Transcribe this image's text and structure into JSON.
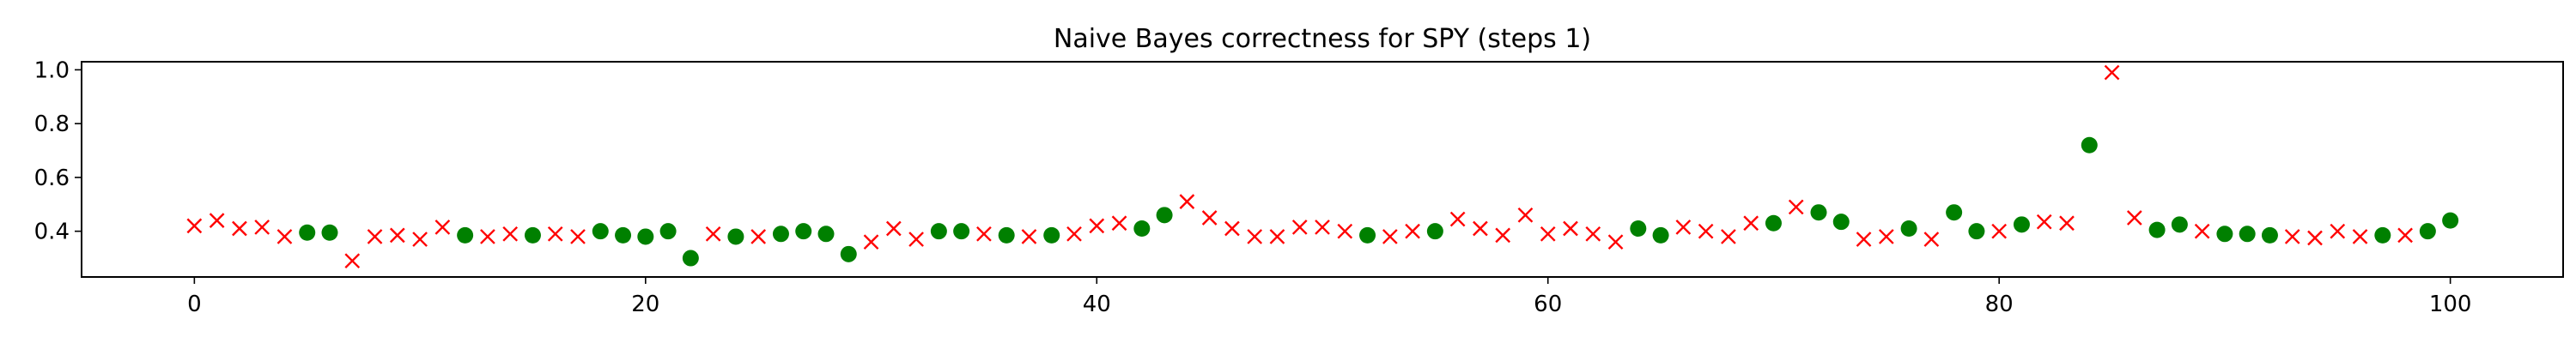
{
  "chart_data": {
    "type": "scatter",
    "title": "Naive Bayes correctness for SPY (steps 1)",
    "xlabel": "",
    "ylabel": "",
    "xlim": [
      -5,
      105
    ],
    "ylim": [
      0.23,
      1.03
    ],
    "grid": false,
    "xticks": [
      0,
      20,
      40,
      60,
      80,
      100
    ],
    "yticks": [
      0.4,
      0.6,
      0.8,
      1.0
    ],
    "xtick_labels": [
      "0",
      "20",
      "40",
      "60",
      "80",
      "100"
    ],
    "ytick_labels": [
      "0.4",
      "0.6",
      "0.8",
      "1.0"
    ],
    "series": [
      {
        "marker": "x",
        "color": "#ff0000",
        "points": [
          [
            0,
            0.42
          ],
          [
            1,
            0.44
          ],
          [
            2,
            0.41
          ],
          [
            3,
            0.415
          ],
          [
            4,
            0.38
          ],
          [
            7,
            0.29
          ],
          [
            8,
            0.38
          ],
          [
            9,
            0.385
          ],
          [
            10,
            0.37
          ],
          [
            11,
            0.415
          ],
          [
            13,
            0.38
          ],
          [
            14,
            0.39
          ],
          [
            16,
            0.39
          ],
          [
            17,
            0.38
          ],
          [
            23,
            0.39
          ],
          [
            25,
            0.38
          ],
          [
            30,
            0.36
          ],
          [
            31,
            0.41
          ],
          [
            32,
            0.37
          ],
          [
            35,
            0.39
          ],
          [
            37,
            0.38
          ],
          [
            39,
            0.39
          ],
          [
            40,
            0.42
          ],
          [
            41,
            0.43
          ],
          [
            44,
            0.51
          ],
          [
            45,
            0.45
          ],
          [
            46,
            0.41
          ],
          [
            47,
            0.38
          ],
          [
            48,
            0.38
          ],
          [
            49,
            0.415
          ],
          [
            50,
            0.415
          ],
          [
            51,
            0.4
          ],
          [
            53,
            0.38
          ],
          [
            54,
            0.4
          ],
          [
            56,
            0.445
          ],
          [
            57,
            0.41
          ],
          [
            58,
            0.385
          ],
          [
            59,
            0.46
          ],
          [
            60,
            0.39
          ],
          [
            61,
            0.41
          ],
          [
            62,
            0.39
          ],
          [
            63,
            0.36
          ],
          [
            66,
            0.415
          ],
          [
            67,
            0.4
          ],
          [
            68,
            0.38
          ],
          [
            69,
            0.43
          ],
          [
            71,
            0.49
          ],
          [
            74,
            0.37
          ],
          [
            75,
            0.38
          ],
          [
            77,
            0.37
          ],
          [
            80,
            0.4
          ],
          [
            82,
            0.435
          ],
          [
            83,
            0.43
          ],
          [
            85,
            0.99
          ],
          [
            86,
            0.45
          ],
          [
            89,
            0.4
          ],
          [
            93,
            0.38
          ],
          [
            94,
            0.375
          ],
          [
            95,
            0.4
          ],
          [
            96,
            0.38
          ],
          [
            98,
            0.385
          ]
        ]
      },
      {
        "marker": "o",
        "color": "#008000",
        "points": [
          [
            5,
            0.395
          ],
          [
            6,
            0.395
          ],
          [
            12,
            0.385
          ],
          [
            15,
            0.385
          ],
          [
            18,
            0.4
          ],
          [
            19,
            0.385
          ],
          [
            20,
            0.38
          ],
          [
            21,
            0.4
          ],
          [
            22,
            0.3
          ],
          [
            24,
            0.38
          ],
          [
            26,
            0.39
          ],
          [
            27,
            0.4
          ],
          [
            28,
            0.39
          ],
          [
            29,
            0.315
          ],
          [
            33,
            0.4
          ],
          [
            34,
            0.4
          ],
          [
            36,
            0.385
          ],
          [
            38,
            0.385
          ],
          [
            42,
            0.41
          ],
          [
            43,
            0.46
          ],
          [
            52,
            0.385
          ],
          [
            55,
            0.4
          ],
          [
            64,
            0.41
          ],
          [
            65,
            0.385
          ],
          [
            70,
            0.43
          ],
          [
            72,
            0.47
          ],
          [
            73,
            0.435
          ],
          [
            76,
            0.41
          ],
          [
            78,
            0.47
          ],
          [
            79,
            0.4
          ],
          [
            81,
            0.425
          ],
          [
            84,
            0.72
          ],
          [
            87,
            0.405
          ],
          [
            88,
            0.425
          ],
          [
            90,
            0.39
          ],
          [
            91,
            0.39
          ],
          [
            92,
            0.385
          ],
          [
            97,
            0.385
          ],
          [
            99,
            0.4
          ],
          [
            100,
            0.44
          ]
        ]
      }
    ]
  }
}
